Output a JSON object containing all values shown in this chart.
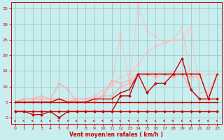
{
  "bg_color": "#c8eef0",
  "grid_color": "#a0c8c0",
  "line_color_dark": "#cc0000",
  "line_color_light": "#ff8888",
  "xlabel": "Vent moyen/en rafales ( km/h )",
  "ylabel_ticks": [
    0,
    5,
    10,
    15,
    20,
    25,
    30,
    35
  ],
  "xlim": [
    -0.5,
    23.5
  ],
  "ylim": [
    -2,
    37
  ],
  "xticks": [
    0,
    1,
    2,
    3,
    4,
    5,
    6,
    7,
    8,
    9,
    10,
    11,
    12,
    13,
    14,
    15,
    16,
    17,
    18,
    19,
    20,
    21,
    22,
    23
  ],
  "series": [
    {
      "x": [
        0,
        1,
        2,
        3,
        4,
        5,
        6,
        7,
        8,
        9,
        10,
        11,
        12,
        13,
        14,
        15,
        16,
        17,
        18,
        19,
        20,
        21,
        22,
        23
      ],
      "y": [
        2,
        2,
        2,
        2,
        2,
        2,
        2,
        2,
        2,
        2,
        2,
        2,
        2,
        2,
        2,
        2,
        2,
        2,
        2,
        2,
        2,
        2,
        2,
        2
      ],
      "color": "#cc0000",
      "lw": 1.0,
      "marker": "D",
      "ms": 2.0,
      "alpha": 1.0,
      "zorder": 5
    },
    {
      "x": [
        0,
        1,
        2,
        3,
        4,
        5,
        6,
        7,
        8,
        9,
        10,
        11,
        12,
        13,
        14,
        15,
        16,
        17,
        18,
        19,
        20,
        21,
        22,
        23
      ],
      "y": [
        2,
        2,
        1,
        1,
        2,
        0,
        2,
        2,
        2,
        2,
        2,
        2,
        7,
        7,
        14,
        8,
        11,
        11,
        14,
        19,
        9,
        6,
        6,
        6
      ],
      "color": "#cc0000",
      "lw": 1.0,
      "marker": "D",
      "ms": 2.0,
      "alpha": 1.0,
      "zorder": 5
    },
    {
      "x": [
        0,
        1,
        2,
        3,
        4,
        5,
        6,
        7,
        8,
        9,
        10,
        11,
        12,
        13,
        14,
        15,
        16,
        17,
        18,
        19,
        20,
        21,
        22,
        23
      ],
      "y": [
        5,
        5,
        5,
        5,
        5,
        5,
        5,
        5,
        5,
        5,
        5,
        5,
        5,
        5,
        5,
        5,
        5,
        5,
        5,
        5,
        5,
        5,
        5,
        5
      ],
      "color": "#cc0000",
      "lw": 1.0,
      "marker": "+",
      "ms": 3.5,
      "alpha": 1.0,
      "zorder": 4
    },
    {
      "x": [
        0,
        1,
        2,
        3,
        4,
        5,
        6,
        7,
        8,
        9,
        10,
        11,
        12,
        13,
        14,
        15,
        16,
        17,
        18,
        19,
        20,
        21,
        22,
        23
      ],
      "y": [
        5,
        5,
        5,
        5,
        5,
        6,
        5,
        5,
        5,
        6,
        6,
        6,
        8,
        9,
        14,
        14,
        14,
        14,
        14,
        14,
        14,
        14,
        6,
        14
      ],
      "color": "#cc0000",
      "lw": 1.0,
      "marker": "+",
      "ms": 3.5,
      "alpha": 1.0,
      "zorder": 4
    },
    {
      "x": [
        0,
        1,
        2,
        3,
        4,
        5,
        6,
        7,
        8,
        9,
        10,
        11,
        12,
        13,
        14,
        15,
        16,
        17,
        18,
        19,
        20,
        21,
        22,
        23
      ],
      "y": [
        5,
        6,
        6,
        7,
        6,
        11,
        9,
        5,
        5,
        5,
        7,
        7,
        10,
        11,
        13,
        14,
        13,
        14,
        13,
        14,
        13,
        14,
        6,
        14
      ],
      "color": "#ffaaaa",
      "lw": 0.9,
      "marker": "D",
      "ms": 2.0,
      "alpha": 1.0,
      "zorder": 3
    },
    {
      "x": [
        0,
        1,
        2,
        3,
        4,
        5,
        6,
        7,
        8,
        9,
        10,
        11,
        12,
        13,
        14,
        15,
        16,
        17,
        18,
        19,
        20,
        21,
        22,
        23
      ],
      "y": [
        5,
        6,
        6,
        6,
        6,
        6,
        5,
        6,
        6,
        6,
        7,
        12,
        11,
        12,
        14,
        14,
        14,
        14,
        14,
        14,
        9,
        6,
        6,
        14
      ],
      "color": "#ffaaaa",
      "lw": 0.9,
      "marker": "D",
      "ms": 2.0,
      "alpha": 1.0,
      "zorder": 3
    },
    {
      "x": [
        0,
        1,
        2,
        3,
        4,
        5,
        6,
        7,
        8,
        9,
        10,
        11,
        12,
        13,
        14,
        15,
        16,
        17,
        18,
        19,
        20,
        21,
        22,
        23
      ],
      "y": [
        5,
        6,
        6,
        6,
        6,
        6,
        6,
        6,
        6,
        7,
        9,
        10,
        13,
        14,
        17,
        21,
        23,
        24,
        25,
        29,
        13,
        13,
        14,
        14
      ],
      "color": "#ffbbbb",
      "lw": 0.9,
      "marker": "D",
      "ms": 2.0,
      "alpha": 0.85,
      "zorder": 2
    },
    {
      "x": [
        0,
        1,
        2,
        3,
        4,
        5,
        6,
        7,
        8,
        9,
        10,
        11,
        12,
        13,
        14,
        15,
        16,
        17,
        18,
        19,
        20,
        21,
        22,
        23
      ],
      "y": [
        5,
        6,
        6,
        6,
        6,
        6,
        6,
        6,
        6,
        7,
        7,
        11,
        27,
        11,
        36,
        28,
        26,
        24,
        25,
        25,
        29,
        8,
        8,
        14
      ],
      "color": "#ffbbbb",
      "lw": 0.9,
      "marker": "D",
      "ms": 2.0,
      "alpha": 0.7,
      "zorder": 2
    }
  ],
  "arrow_angles": [
    225,
    215,
    205,
    230,
    220,
    200,
    240,
    215,
    220,
    210,
    200,
    230,
    215,
    195,
    210,
    200,
    220,
    215,
    205,
    225,
    210,
    200,
    215,
    220
  ]
}
